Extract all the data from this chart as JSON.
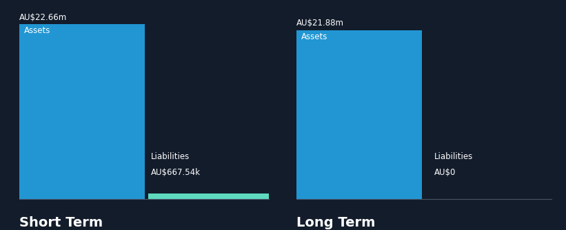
{
  "background_color": "#131c2b",
  "panels": [
    {
      "title": "Short Term",
      "asset_label": "Assets",
      "asset_value": 22.66,
      "asset_value_str": "AU$22.66m",
      "asset_color": "#2196d3",
      "liability_label": "Liabilities",
      "liability_value": 0.66754,
      "liability_value_str": "AU$667.54k",
      "liability_color": "#5dd9be"
    },
    {
      "title": "Long Term",
      "asset_label": "Assets",
      "asset_value": 21.88,
      "asset_value_str": "AU$21.88m",
      "asset_color": "#2196d3",
      "liability_label": "Liabilities",
      "liability_value": 0.0,
      "liability_value_str": "AU$0",
      "liability_color": "#2196d3"
    }
  ],
  "text_color": "#ffffff",
  "label_fontsize": 8.5,
  "value_fontsize": 8.5,
  "title_fontsize": 14,
  "divider_color": "#4a5568",
  "max_val": 22.66
}
